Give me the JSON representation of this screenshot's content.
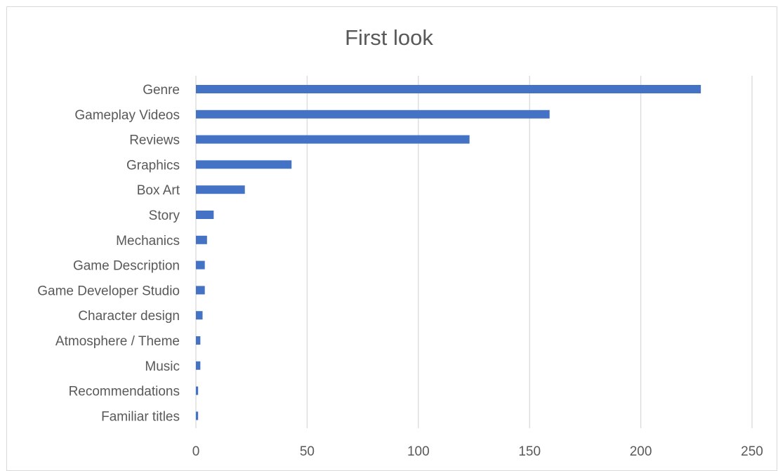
{
  "chart_data": {
    "type": "bar",
    "orientation": "horizontal",
    "title": "First look",
    "xlabel": "",
    "ylabel": "",
    "categories": [
      "Genre",
      "Gameplay Videos",
      "Reviews",
      "Graphics",
      "Box Art",
      "Story",
      "Mechanics",
      "Game Description",
      "Game Developer Studio",
      "Character design",
      "Atmosphere / Theme",
      "Music",
      "Recommendations",
      "Familiar titles"
    ],
    "values": [
      227,
      159,
      123,
      43,
      22,
      8,
      5,
      4,
      4,
      3,
      2,
      2,
      1,
      1
    ],
    "xlim": [
      0,
      250
    ],
    "xticks": [
      0,
      50,
      100,
      150,
      200,
      250
    ],
    "grid": true,
    "legend": "none",
    "bar_color": "#4472c4",
    "grid_color": "#d9d9d9"
  }
}
